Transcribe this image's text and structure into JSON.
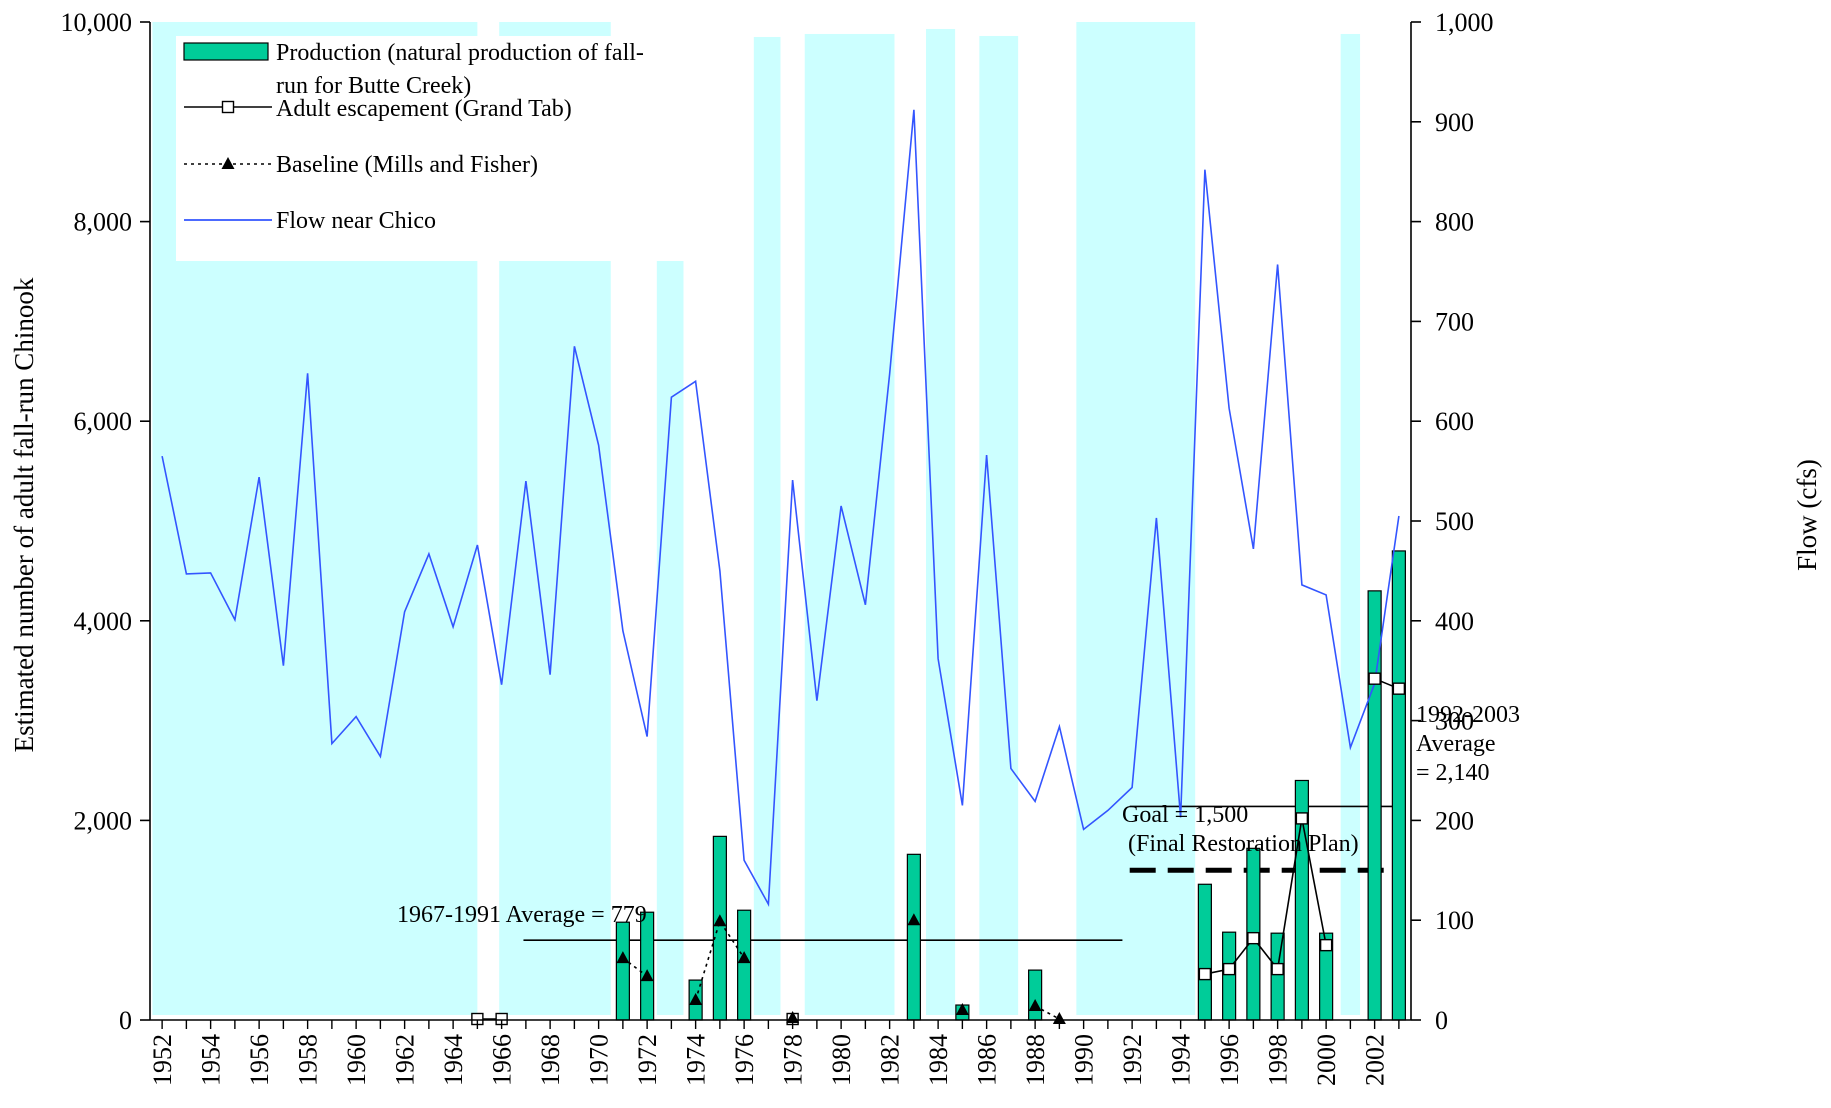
{
  "chart_data": {
    "type": "bar",
    "title": "",
    "ylabel": "Estimated number of adult fall-run Chinook",
    "y2label": "Flow (cfs)",
    "xlabel": "",
    "ylim": [
      0,
      10000
    ],
    "y2lim": [
      0,
      1000
    ],
    "yticks": [
      "0",
      "2,000",
      "4,000",
      "6,000",
      "8,000",
      "10,000"
    ],
    "y2ticks": [
      "0",
      "100",
      "200",
      "300",
      "400",
      "500",
      "600",
      "700",
      "800",
      "900",
      "1,000"
    ],
    "x_tick_labels": [
      "1952",
      "1954",
      "1956",
      "1958",
      "1960",
      "1962",
      "1964",
      "1966",
      "1968",
      "1970",
      "1972",
      "1974",
      "1976",
      "1978",
      "1980",
      "1982",
      "1984",
      "1986",
      "1988",
      "1990",
      "1992",
      "1994",
      "1996",
      "1998",
      "2000",
      "2002"
    ],
    "shaded_background": {
      "color": "#ccffff",
      "bands": [
        {
          "from": 1951.6,
          "to": 1965.0,
          "top": 10000
        },
        {
          "from": 1965.9,
          "to": 1970.5,
          "top": 10000
        },
        {
          "from": 1972.4,
          "to": 1973.5,
          "top": 9830
        },
        {
          "from": 1976.4,
          "to": 1977.5,
          "top": 9850
        },
        {
          "from": 1978.5,
          "to": 1982.2,
          "top": 9880
        },
        {
          "from": 1983.5,
          "to": 1984.7,
          "top": 9930
        },
        {
          "from": 1985.7,
          "to": 1987.3,
          "top": 9860
        },
        {
          "from": 1989.7,
          "to": 1994.6,
          "top": 10000
        },
        {
          "from": 2000.6,
          "to": 2001.4,
          "top": 9880
        }
      ]
    },
    "series": [
      {
        "name": "Production (natural production of fall-run for Butte Creek)",
        "type": "bar",
        "color": "#00cc99",
        "axis": "left",
        "points": [
          {
            "x": 1971,
            "y": 980
          },
          {
            "x": 1972,
            "y": 1080
          },
          {
            "x": 1974,
            "y": 400
          },
          {
            "x": 1975,
            "y": 1840
          },
          {
            "x": 1976,
            "y": 1100
          },
          {
            "x": 1983,
            "y": 1660
          },
          {
            "x": 1985,
            "y": 150
          },
          {
            "x": 1988,
            "y": 500
          },
          {
            "x": 1995,
            "y": 1360
          },
          {
            "x": 1996,
            "y": 880
          },
          {
            "x": 1997,
            "y": 1720
          },
          {
            "x": 1998,
            "y": 870
          },
          {
            "x": 1999,
            "y": 2400
          },
          {
            "x": 2000,
            "y": 870
          },
          {
            "x": 2002,
            "y": 4300
          },
          {
            "x": 2003,
            "y": 4700
          }
        ]
      },
      {
        "name": "Adult escapement (Grand Tab)",
        "type": "line",
        "marker": "square",
        "axis": "left",
        "segments": [
          [
            {
              "x": 1965,
              "y": 10
            },
            {
              "x": 1966,
              "y": 10
            }
          ],
          [
            {
              "x": 1978,
              "y": 10
            }
          ],
          [
            {
              "x": 1995,
              "y": 460
            },
            {
              "x": 1996,
              "y": 510
            },
            {
              "x": 1997,
              "y": 820
            },
            {
              "x": 1998,
              "y": 510
            },
            {
              "x": 1999,
              "y": 2020
            },
            {
              "x": 2000,
              "y": 750
            }
          ],
          [
            {
              "x": 2002,
              "y": 3420
            },
            {
              "x": 2003,
              "y": 3320
            }
          ]
        ]
      },
      {
        "name": "Baseline (Mills and Fisher)",
        "type": "line",
        "marker": "triangle",
        "dashed": true,
        "axis": "left",
        "segments": [
          [
            {
              "x": 1971,
              "y": 620
            },
            {
              "x": 1972,
              "y": 440
            }
          ],
          [
            {
              "x": 1974,
              "y": 200
            },
            {
              "x": 1975,
              "y": 990
            },
            {
              "x": 1976,
              "y": 620
            }
          ],
          [
            {
              "x": 1978,
              "y": 20
            }
          ],
          [
            {
              "x": 1983,
              "y": 1000
            }
          ],
          [
            {
              "x": 1985,
              "y": 100
            }
          ],
          [
            {
              "x": 1988,
              "y": 140
            },
            {
              "x": 1989,
              "y": 10
            }
          ]
        ]
      },
      {
        "name": "Flow near Chico",
        "type": "line",
        "color": "#3355ff",
        "axis": "right",
        "x": [
          1952,
          1953,
          1954,
          1955,
          1956,
          1957,
          1958,
          1959,
          1960,
          1961,
          1962,
          1963,
          1964,
          1965,
          1966,
          1967,
          1968,
          1969,
          1970,
          1971,
          1972,
          1973,
          1974,
          1975,
          1976,
          1977,
          1978,
          1979,
          1980,
          1981,
          1982,
          1983,
          1984,
          1985,
          1986,
          1987,
          1988,
          1989,
          1990,
          1991,
          1992,
          1993,
          1994,
          1995,
          1996,
          1997,
          1998,
          1999,
          2000,
          2001,
          2002,
          2003
        ],
        "y": [
          565,
          447,
          448,
          401,
          544,
          355,
          648,
          277,
          304,
          264,
          409,
          467,
          394,
          476,
          336,
          540,
          346,
          675,
          576,
          390,
          284,
          624,
          640,
          450,
          160,
          116,
          541,
          320,
          515,
          416,
          647,
          912,
          362,
          215,
          566,
          252,
          219,
          294,
          191,
          210,
          233,
          503,
          203,
          852,
          613,
          472,
          757,
          436,
          426,
          273,
          337,
          505
        ]
      }
    ],
    "reference_lines": [
      {
        "label": "1967-1991 Average = 779",
        "y": 800,
        "x_from": 1966.9,
        "x_to": 1991.6,
        "style": "solid"
      },
      {
        "label_lines": [
          "1992-2003",
          "Average",
          "= 2,140"
        ],
        "y": 2140,
        "x_from": 1991.9,
        "x_to": 2003.1,
        "style": "solid"
      },
      {
        "label_lines": [
          "Goal = 1,500",
          " (Final Restoration Plan)"
        ],
        "y": 1500,
        "x_from": 1991.9,
        "x_to": 2003.1,
        "style": "dashed-bold"
      }
    ],
    "legend_position": "top-left"
  }
}
